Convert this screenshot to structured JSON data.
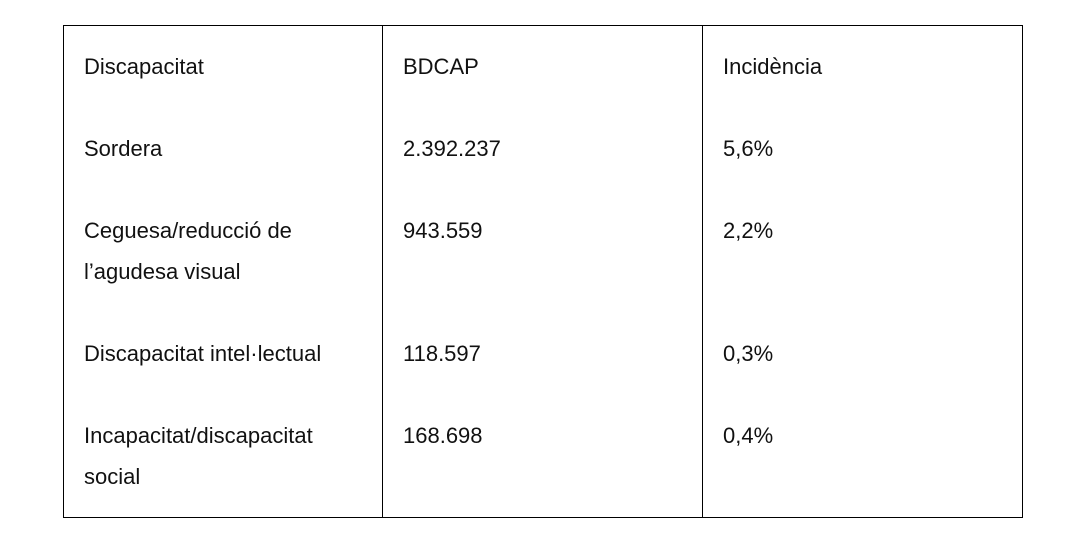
{
  "table": {
    "headers": [
      "Discapacitat",
      "BDCAP",
      "Incidència"
    ],
    "rows": [
      {
        "discapacitat": "Sordera",
        "bdcap": "2.392.237",
        "incidencia": "5,6%"
      },
      {
        "discapacitat_line1": "Ceguesa/reducció de",
        "discapacitat_line2": "l’agudesa visual",
        "bdcap": "943.559",
        "incidencia": "2,2%"
      },
      {
        "discapacitat": "Discapacitat intel·lectual",
        "bdcap": "118.597",
        "incidencia": "0,3%"
      },
      {
        "discapacitat_line1": "Incapacitat/discapacitat",
        "discapacitat_line2": "social",
        "bdcap": "168.698",
        "incidencia": "0,4%"
      }
    ]
  }
}
